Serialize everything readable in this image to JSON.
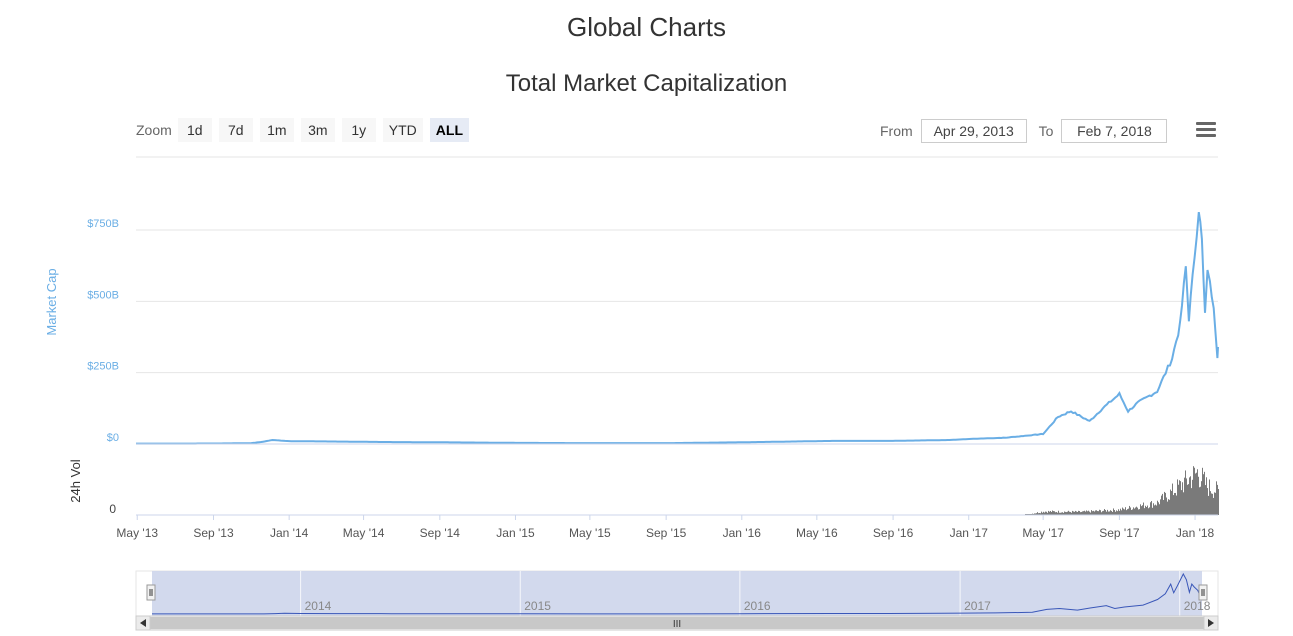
{
  "page": {
    "title": "Global Charts"
  },
  "toolbar": {
    "zoom_label": "Zoom",
    "zoom_buttons": [
      "1d",
      "7d",
      "1m",
      "3m",
      "1y",
      "YTD",
      "ALL"
    ],
    "zoom_active": "ALL",
    "from_label": "From",
    "from_value": "Apr 29, 2013",
    "to_label": "To",
    "to_value": "Feb 7, 2018",
    "menu_icon": "hamburger-menu-icon"
  },
  "colors": {
    "market_cap_line": "#6aaee5",
    "volume_bars": "#7a7a7a",
    "navigator_fill": "#cdd5eb",
    "navigator_line": "#3a57b8",
    "axis_label": "#6aaee5"
  },
  "chart_data": {
    "type": "line",
    "title": "Total Market Capitalization",
    "ylabel": "Market Cap",
    "y_ticks": [
      "$0",
      "$250B",
      "$500B",
      "$750B"
    ],
    "ylim": [
      0,
      750
    ],
    "y_unit": "billion USD",
    "x_range": [
      "2013-04-29",
      "2018-02-07"
    ],
    "x_tick_labels": [
      "May '13",
      "Sep '13",
      "Jan '14",
      "May '14",
      "Sep '14",
      "Jan '15",
      "May '15",
      "Sep '15",
      "Jan '16",
      "May '16",
      "Sep '16",
      "Jan '17",
      "May '17",
      "Sep '17",
      "Jan '18"
    ],
    "series": [
      {
        "name": "Market Cap",
        "points": [
          [
            "2013-04-29",
            1.5
          ],
          [
            "2013-09-01",
            1.6
          ],
          [
            "2013-11-01",
            3
          ],
          [
            "2013-11-20",
            8
          ],
          [
            "2013-12-05",
            14
          ],
          [
            "2014-01-01",
            10
          ],
          [
            "2014-03-01",
            9
          ],
          [
            "2014-06-01",
            7
          ],
          [
            "2014-09-01",
            6
          ],
          [
            "2015-01-01",
            4
          ],
          [
            "2015-05-01",
            3
          ],
          [
            "2015-09-01",
            3
          ],
          [
            "2016-01-01",
            6
          ],
          [
            "2016-06-01",
            11
          ],
          [
            "2016-09-01",
            11
          ],
          [
            "2016-12-01",
            14
          ],
          [
            "2017-01-05",
            18
          ],
          [
            "2017-03-01",
            22
          ],
          [
            "2017-05-01",
            35
          ],
          [
            "2017-05-25",
            95
          ],
          [
            "2017-06-15",
            115
          ],
          [
            "2017-07-15",
            80
          ],
          [
            "2017-08-05",
            125
          ],
          [
            "2017-09-01",
            175
          ],
          [
            "2017-09-15",
            115
          ],
          [
            "2017-10-01",
            145
          ],
          [
            "2017-11-01",
            185
          ],
          [
            "2017-11-25",
            300
          ],
          [
            "2017-12-08",
            420
          ],
          [
            "2017-12-17",
            620
          ],
          [
            "2017-12-22",
            440
          ],
          [
            "2017-12-28",
            580
          ],
          [
            "2018-01-07",
            830
          ],
          [
            "2018-01-12",
            710
          ],
          [
            "2018-01-17",
            450
          ],
          [
            "2018-01-21",
            620
          ],
          [
            "2018-01-25",
            560
          ],
          [
            "2018-01-31",
            490
          ],
          [
            "2018-02-06",
            310
          ],
          [
            "2018-02-07",
            340
          ]
        ]
      }
    ],
    "volume_panel": {
      "ylabel": "24h Vol",
      "y_ticks": [
        "0"
      ],
      "profile": [
        [
          "2013-04-29",
          0
        ],
        [
          "2017-04-01",
          0
        ],
        [
          "2017-05-01",
          0.08
        ],
        [
          "2017-07-01",
          0.07
        ],
        [
          "2017-09-01",
          0.12
        ],
        [
          "2017-11-01",
          0.28
        ],
        [
          "2017-12-15",
          0.75
        ],
        [
          "2018-01-05",
          0.98
        ],
        [
          "2018-01-20",
          0.65
        ],
        [
          "2018-02-07",
          0.55
        ]
      ]
    },
    "navigator": {
      "year_labels": [
        "2014",
        "2015",
        "2016",
        "2017",
        "2018"
      ]
    }
  }
}
